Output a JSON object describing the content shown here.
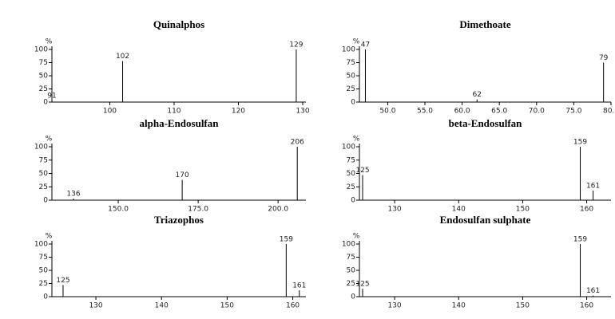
{
  "chart_data": [
    {
      "type": "bar",
      "title": "Quinalphos",
      "y_label": "%",
      "color": "#000000",
      "x": [
        91,
        102,
        129
      ],
      "values": [
        3,
        78,
        100
      ],
      "xlim": [
        91,
        130.5
      ],
      "xticks": [
        100,
        110,
        120,
        130
      ],
      "ylim": [
        0,
        100
      ],
      "yticks": [
        0,
        25,
        50,
        75,
        100
      ]
    },
    {
      "type": "bar",
      "title": "Dimethoate",
      "y_label": "%",
      "color": "#000000",
      "x": [
        47,
        62,
        79
      ],
      "values": [
        100,
        5,
        75
      ],
      "xlim": [
        46.2,
        80
      ],
      "xticks": [
        {
          "value": 50,
          "label": "50.0"
        },
        {
          "value": 55,
          "label": "55.0"
        },
        {
          "value": 60,
          "label": "60.0"
        },
        {
          "value": 65,
          "label": "65.0"
        },
        {
          "value": 70,
          "label": "70.0"
        },
        {
          "value": 75,
          "label": "75.0"
        },
        {
          "value": 80,
          "label": "80.0"
        }
      ],
      "ylim": [
        0,
        100
      ],
      "yticks": [
        0,
        25,
        50,
        75,
        100
      ]
    },
    {
      "type": "bar",
      "title": "alpha-Endosulfan",
      "y_label": "%",
      "color": "#000000",
      "x": [
        136,
        170,
        206
      ],
      "values": [
        3,
        38,
        100
      ],
      "xlim": [
        129.25,
        208.7
      ],
      "xticks": [
        {
          "value": 150,
          "label": "150.0"
        },
        {
          "value": 175,
          "label": "175.0"
        },
        {
          "value": 200,
          "label": "200.0"
        }
      ],
      "ylim": [
        0,
        100
      ],
      "yticks": [
        0,
        25,
        50,
        75,
        100
      ]
    },
    {
      "type": "bar",
      "title": "beta-Endosulfan",
      "y_label": "%",
      "color": "#000000",
      "x": [
        125,
        159,
        161
      ],
      "values": [
        47,
        100,
        18
      ],
      "xlim": [
        124.5,
        163.8
      ],
      "xticks": [
        130,
        140,
        150,
        160
      ],
      "ylim": [
        0,
        100
      ],
      "yticks": [
        0,
        25,
        50,
        75,
        100
      ]
    },
    {
      "type": "bar",
      "title": "Triazophos",
      "y_label": "%",
      "color": "#000000",
      "x": [
        125,
        159,
        161
      ],
      "values": [
        22,
        100,
        12
      ],
      "xlim": [
        123.3,
        162
      ],
      "xticks": [
        130,
        140,
        150,
        160
      ],
      "ylim": [
        0,
        100
      ],
      "yticks": [
        0,
        25,
        50,
        75,
        100
      ]
    },
    {
      "type": "bar",
      "title": "Endosulfan sulphate",
      "y_label": "%",
      "color": "#000000",
      "x": [
        125,
        159,
        161
      ],
      "values": [
        15,
        100,
        2
      ],
      "xlim": [
        124.5,
        163.8
      ],
      "xticks": [
        130,
        140,
        150,
        160
      ],
      "ylim": [
        0,
        100
      ],
      "yticks": [
        0,
        25,
        50,
        75,
        100
      ]
    }
  ]
}
